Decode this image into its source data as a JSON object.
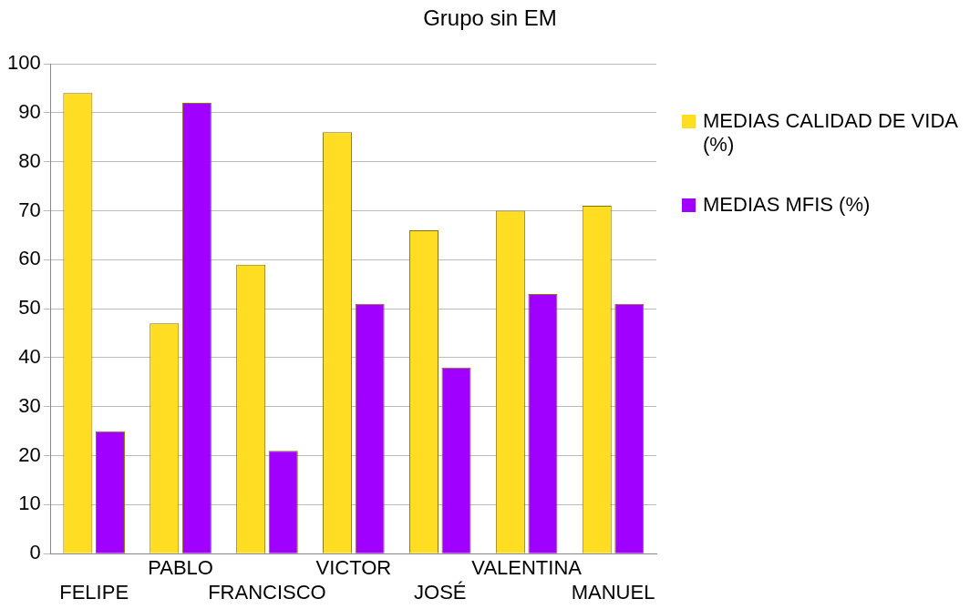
{
  "chart_data": {
    "type": "bar",
    "title": "Grupo sin EM",
    "categories": [
      "FELIPE",
      "PABLO",
      "FRANCISCO",
      "VICTOR",
      "JOSÉ",
      "VALENTINA",
      "MANUEL"
    ],
    "series": [
      {
        "name": "MEDIAS CALIDAD DE VIDA (%)",
        "color": "#ffdd22",
        "values": [
          94,
          47,
          59,
          86,
          66,
          70,
          71
        ]
      },
      {
        "name": "MEDIAS MFIS (%)",
        "color": "#a000ff",
        "values": [
          25,
          92,
          21,
          51,
          38,
          53,
          51
        ]
      }
    ],
    "ylim": [
      0,
      100
    ],
    "yticks": [
      0,
      10,
      20,
      30,
      40,
      50,
      60,
      70,
      80,
      90,
      100
    ],
    "grid": "y",
    "legend": "right"
  }
}
